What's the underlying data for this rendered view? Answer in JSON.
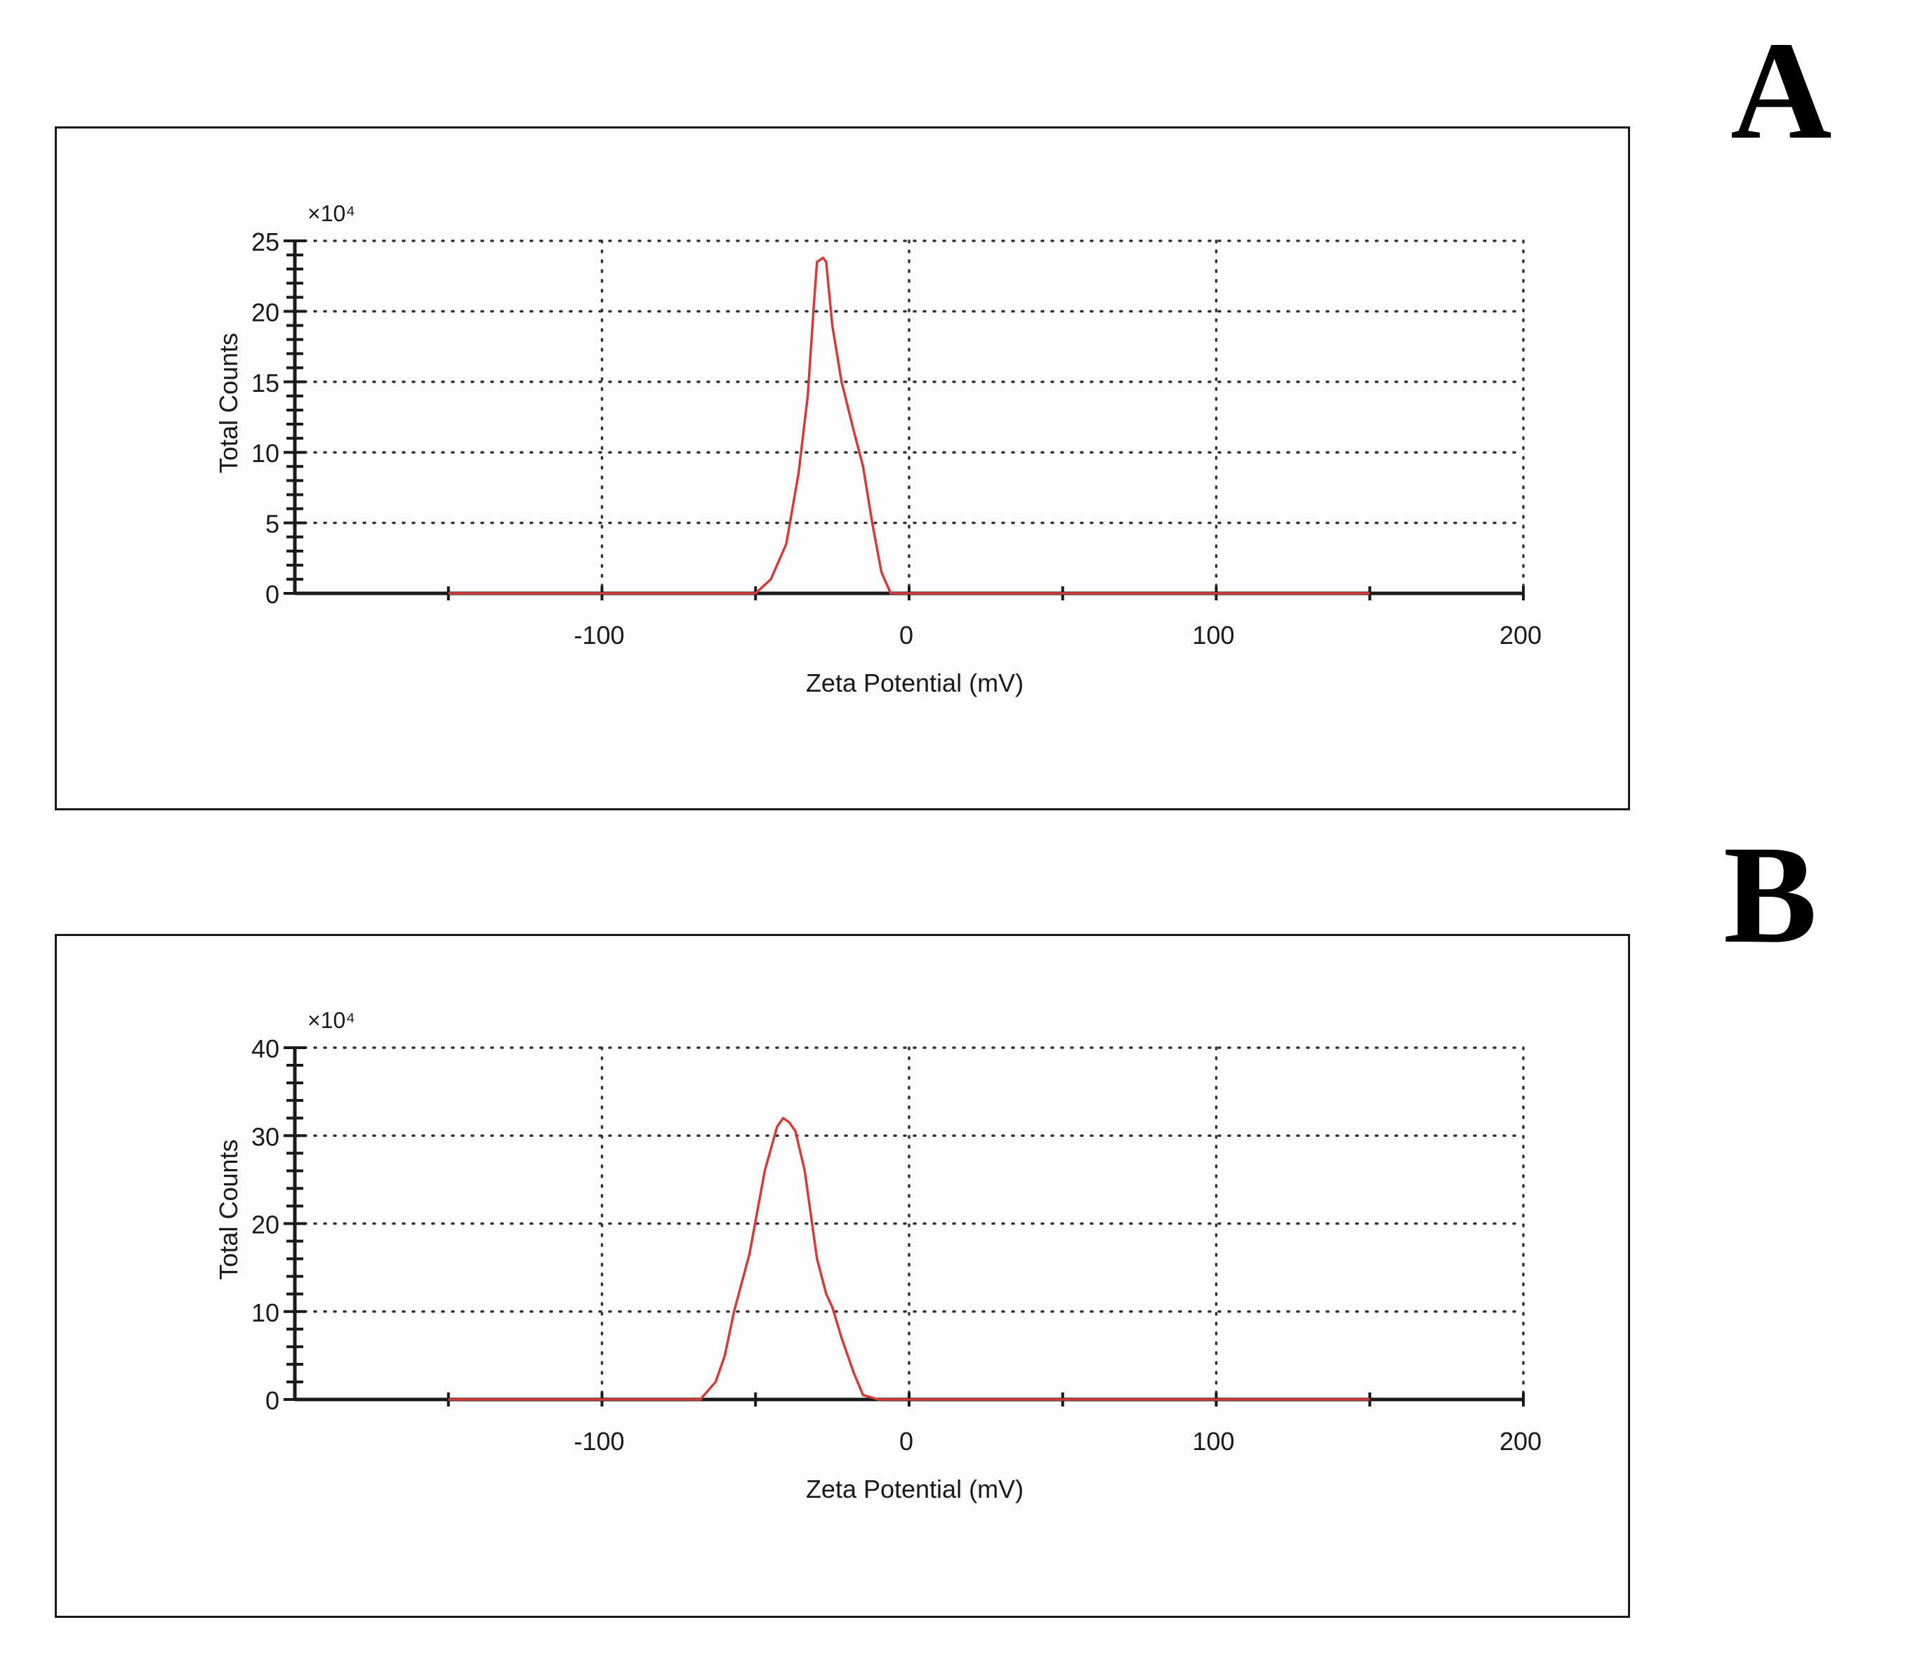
{
  "panels": [
    {
      "letter": "A"
    },
    {
      "letter": "B"
    }
  ],
  "colors": {
    "series": "#d43b3b",
    "axis": "#1a1a1a",
    "grid": "#333333",
    "panel_border": "#1a1a1a"
  },
  "chart_data": [
    {
      "type": "line",
      "xlabel": "Zeta Potential (mV)",
      "ylabel": "Total Counts",
      "y_multiplier_label": "×10⁴",
      "xlim": [
        -200,
        200
      ],
      "ylim": [
        0,
        25
      ],
      "xticks": [
        -100,
        0,
        100,
        200
      ],
      "yticks": [
        0,
        5,
        10,
        15,
        20,
        25
      ],
      "grid": true,
      "series": [
        {
          "x": [
            -150,
            -50,
            -45,
            -40,
            -36,
            -33,
            -31,
            -30,
            -28,
            -27,
            -25,
            -22,
            -18,
            -15,
            -12,
            -9,
            -7,
            -6,
            150
          ],
          "y": [
            0,
            0,
            1.0,
            3.5,
            8.5,
            14.0,
            20.5,
            23.5,
            23.8,
            23.5,
            19.0,
            15.0,
            11.5,
            9.0,
            5.0,
            1.5,
            0.5,
            0,
            0
          ]
        }
      ]
    },
    {
      "type": "line",
      "xlabel": "Zeta Potential (mV)",
      "ylabel": "Total Counts",
      "y_multiplier_label": "×10⁴",
      "xlim": [
        -200,
        200
      ],
      "ylim": [
        0,
        40
      ],
      "xticks": [
        -100,
        0,
        100,
        200
      ],
      "yticks": [
        0,
        10,
        20,
        30,
        40
      ],
      "grid": true,
      "series": [
        {
          "x": [
            -150,
            -68,
            -63,
            -60,
            -57,
            -52,
            -47,
            -43,
            -41,
            -39,
            -37,
            -34,
            -30,
            -27,
            -25,
            -22,
            -18,
            -15,
            -10,
            -8,
            -7,
            150
          ],
          "y": [
            0,
            0,
            2.0,
            5.0,
            10.0,
            16.5,
            26.0,
            31.0,
            32.0,
            31.5,
            30.5,
            26.0,
            16.0,
            12.0,
            10.5,
            7.0,
            3.0,
            0.5,
            0,
            0,
            0,
            0
          ]
        }
      ]
    }
  ]
}
